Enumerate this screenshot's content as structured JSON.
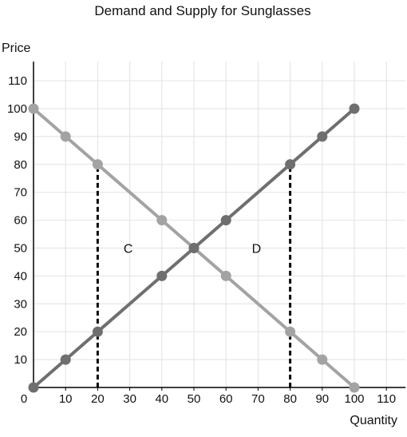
{
  "chart_data": {
    "type": "line",
    "title": "Demand and Supply for Sunglasses",
    "xlabel": "Quantity",
    "ylabel": "Price",
    "xlim": [
      0,
      110
    ],
    "ylim": [
      0,
      110
    ],
    "x_ticks": [
      0,
      10,
      20,
      30,
      40,
      50,
      60,
      70,
      80,
      90,
      100,
      110
    ],
    "y_ticks": [
      10,
      20,
      30,
      40,
      50,
      60,
      70,
      80,
      90,
      100,
      110
    ],
    "grid": true,
    "series": [
      {
        "color": "#a3a3a3",
        "points": [
          [
            0,
            100
          ],
          [
            10,
            90
          ],
          [
            20,
            80
          ],
          [
            40,
            60
          ],
          [
            50,
            50
          ],
          [
            60,
            40
          ],
          [
            80,
            20
          ],
          [
            90,
            10
          ],
          [
            100,
            0
          ]
        ]
      },
      {
        "color": "#6f6f6f",
        "points": [
          [
            0,
            0
          ],
          [
            10,
            10
          ],
          [
            20,
            20
          ],
          [
            40,
            40
          ],
          [
            50,
            50
          ],
          [
            60,
            60
          ],
          [
            80,
            80
          ],
          [
            90,
            90
          ],
          [
            100,
            100
          ]
        ]
      }
    ],
    "reference_lines": [
      {
        "x": 20,
        "y_from": 0,
        "y_to": 80,
        "style": "dashed"
      },
      {
        "x": 80,
        "y_from": 0,
        "y_to": 80,
        "style": "dashed"
      }
    ],
    "annotations": [
      {
        "text": "C",
        "x": 30,
        "y": 50
      },
      {
        "text": "D",
        "x": 70,
        "y": 50
      }
    ]
  }
}
